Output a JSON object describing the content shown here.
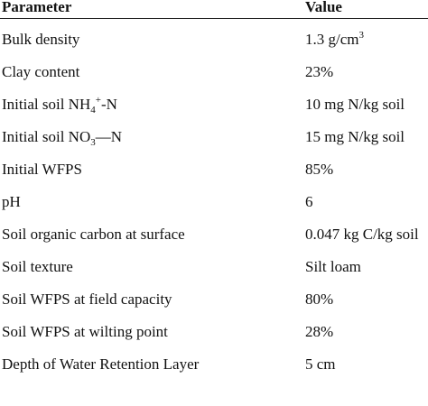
{
  "header": {
    "parameter": "Parameter",
    "value": "Value"
  },
  "rows": [
    {
      "param": "Bulk density",
      "value_main": "1.3 g/cm",
      "value_sup": "3"
    },
    {
      "param": "Clay content",
      "value": "23%"
    },
    {
      "param_main": "Initial soil NH",
      "param_sub": "4",
      "param_sup": "+",
      "param_tail": "-N",
      "value": "10 mg N/kg soil"
    },
    {
      "param_main": "Initial soil NO",
      "param_sub": "3",
      "param_tail": "—N",
      "value": "15 mg N/kg soil"
    },
    {
      "param": "Initial WFPS",
      "value": "85%"
    },
    {
      "param": "pH",
      "value": "6"
    },
    {
      "param": "Soil organic carbon at surface",
      "value": "0.047 kg C/kg soil"
    },
    {
      "param": "Soil texture",
      "value": "Silt loam"
    },
    {
      "param": "Soil WFPS at field capacity",
      "value": "80%"
    },
    {
      "param": "Soil WFPS at wilting point",
      "value": "28%"
    },
    {
      "param": "Depth of Water Retention Layer",
      "value": "5 cm"
    }
  ]
}
